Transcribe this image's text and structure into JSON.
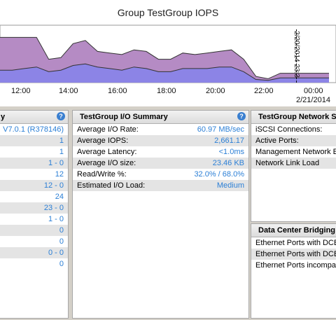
{
  "chart": {
    "title": "Group TestGroup IOPS",
    "x_ticks": [
      "12:00",
      "14:00",
      "16:00",
      "18:00",
      "20:00",
      "22:00",
      "00:00"
    ],
    "x_sub": "2/21/2014",
    "marker_label": "2/20/2014 23:3",
    "colors": {
      "total": "#b58bc4",
      "reads": "#8c84e6"
    }
  },
  "chart_data": {
    "type": "area",
    "title": "Group TestGroup IOPS",
    "x": [
      "11:10",
      "11:45",
      "12:15",
      "12:45",
      "13:05",
      "13:20",
      "13:45",
      "14:15",
      "14:45",
      "15:15",
      "15:45",
      "16:15",
      "16:45",
      "17:15",
      "17:45",
      "18:15",
      "18:45",
      "19:15",
      "19:45",
      "20:15",
      "20:45",
      "21:15",
      "21:45",
      "22:15",
      "22:45",
      "23:15",
      "23:45",
      "00:15"
    ],
    "series": [
      {
        "values": [
          58,
          58,
          58,
          58,
          30,
          32,
          50,
          54,
          40,
          38,
          36,
          42,
          40,
          30,
          30,
          38,
          36,
          38,
          40,
          42,
          30,
          8,
          5,
          12,
          12,
          12,
          12,
          12
        ]
      },
      {
        "values": [
          16,
          16,
          18,
          20,
          14,
          16,
          22,
          24,
          20,
          18,
          16,
          20,
          18,
          14,
          14,
          18,
          18,
          18,
          20,
          20,
          14,
          4,
          3,
          6,
          6,
          6,
          6,
          6
        ]
      }
    ]
  },
  "left_panel": {
    "rows": [
      "V7.0.1 (R378146)",
      "1",
      "1",
      "1 - 0",
      "12",
      "12 - 0",
      "24",
      "23 - 0",
      "1 - 0",
      "0",
      "0",
      "0 - 0",
      "0"
    ]
  },
  "io_summary": {
    "title": "TestGroup I/O Summary",
    "rows": [
      {
        "label": "Average I/O Rate:",
        "value": "60.97 MB/sec"
      },
      {
        "label": "Average IOPS:",
        "value": "2,661.17"
      },
      {
        "label": "Average Latency:",
        "value": "<1.0ms"
      },
      {
        "label": "Average I/O size:",
        "value": "23.46 KB"
      },
      {
        "label": "Read/Write %:",
        "value": "32.0% / 68.0%"
      },
      {
        "label": "Estimated I/O Load:",
        "value": "Medium"
      }
    ]
  },
  "network_summary": {
    "title": "TestGroup Network Su",
    "rows": [
      "iSCSI Connections:",
      "Active Ports:",
      "Management Network Ena",
      "Network Link Load"
    ]
  },
  "dcb": {
    "title": "Data Center Bridging (",
    "rows": [
      "Ethernet Ports with DCB su",
      "Ethernet Ports with DCB su",
      "Ethernet Ports incompatibl"
    ]
  }
}
